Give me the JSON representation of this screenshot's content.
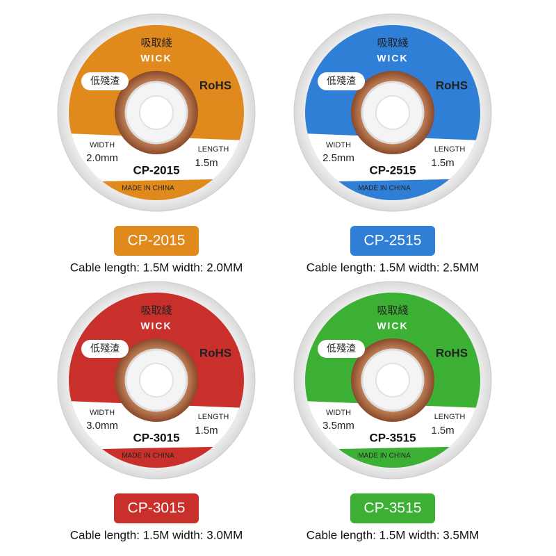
{
  "products": [
    {
      "color": "#e08a1e",
      "title_cn": "吸取綫",
      "brand": "WICK",
      "tag": "低殘渣",
      "rohs": "RoHS",
      "width_label": "WIDTH",
      "width": "2.0mm",
      "length_label": "LENGTH",
      "length": "1.5m",
      "model": "CP-2015",
      "origin": "MADE IN CHINA",
      "badge": "CP-2015",
      "caption": "Cable length: 1.5M width: 2.0MM"
    },
    {
      "color": "#2f7fd6",
      "title_cn": "吸取綫",
      "brand": "WICK",
      "tag": "低殘渣",
      "rohs": "RoHS",
      "width_label": "WIDTH",
      "width": "2.5mm",
      "length_label": "LENGTH",
      "length": "1.5m",
      "model": "CP-2515",
      "origin": "MADE IN CHINA",
      "badge": "CP-2515",
      "caption": "Cable length: 1.5M width: 2.5MM"
    },
    {
      "color": "#c9302c",
      "title_cn": "吸取綫",
      "brand": "WICK",
      "tag": "低殘渣",
      "rohs": "RoHS",
      "width_label": "WIDTH",
      "width": "3.0mm",
      "length_label": "LENGTH",
      "length": "1.5m",
      "model": "CP-3015",
      "origin": "MADE IN CHINA",
      "badge": "CP-3015",
      "caption": "Cable length: 1.5M width: 3.0MM"
    },
    {
      "color": "#3cb034",
      "title_cn": "吸取綫",
      "brand": "WICK",
      "tag": "低殘渣",
      "rohs": "RoHS",
      "width_label": "WIDTH",
      "width": "3.5mm",
      "length_label": "LENGTH",
      "length": "1.5m",
      "model": "CP-3515",
      "origin": "MADE IN CHINA",
      "badge": "CP-3515",
      "caption": "Cable length: 1.5M width: 3.5MM"
    }
  ]
}
